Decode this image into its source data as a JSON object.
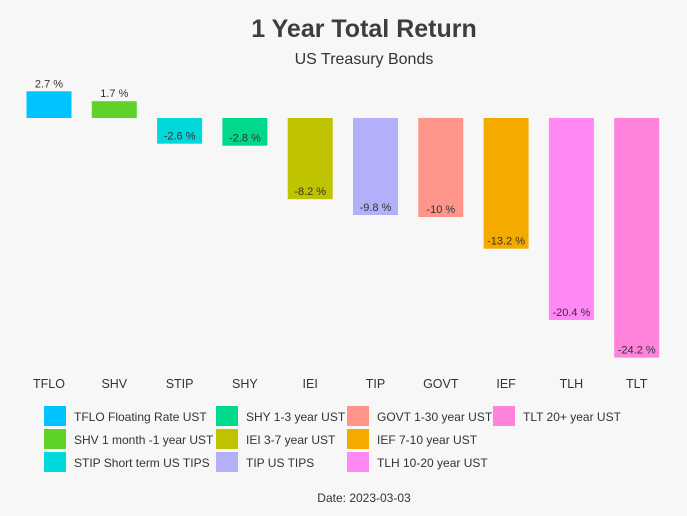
{
  "chart_data": {
    "type": "bar",
    "title": "1 Year Total Return",
    "subtitle": "US Treasury Bonds",
    "categories": [
      "TFLO",
      "SHV",
      "STIP",
      "SHY",
      "IEI",
      "TIP",
      "GOVT",
      "IEF",
      "TLH",
      "TLT"
    ],
    "values": [
      2.7,
      1.7,
      -2.6,
      -2.8,
      -8.2,
      -9.8,
      -10,
      -13.2,
      -20.4,
      -24.2
    ],
    "value_labels": [
      "2.7 %",
      "1.7 %",
      "-2.6 %",
      "-2.8 %",
      "-8.2 %",
      "-9.8 %",
      "-10 %",
      "-13.2 %",
      "-20.4 %",
      "-24.2 %"
    ],
    "colors": [
      "#00c3ff",
      "#5dd32a",
      "#00d9dc",
      "#00d98c",
      "#bfc300",
      "#b4aff9",
      "#ff948a",
      "#f5aa00",
      "#ff88f5",
      "#ff83dc"
    ],
    "legend": [
      "TFLO Floating Rate  UST",
      "SHV 1 month -1 year UST",
      "STIP Short term US TIPS",
      "SHY 1-3 year UST",
      "IEI 3-7 year UST",
      "TIP US TIPS",
      "GOVT 1-30 year UST",
      "IEF 7-10 year UST",
      "TLH 10-20 year UST",
      "TLT 20+ year UST"
    ],
    "legend_placement": "bottom",
    "grid": false,
    "footer": "Date: 2023-03-03"
  }
}
